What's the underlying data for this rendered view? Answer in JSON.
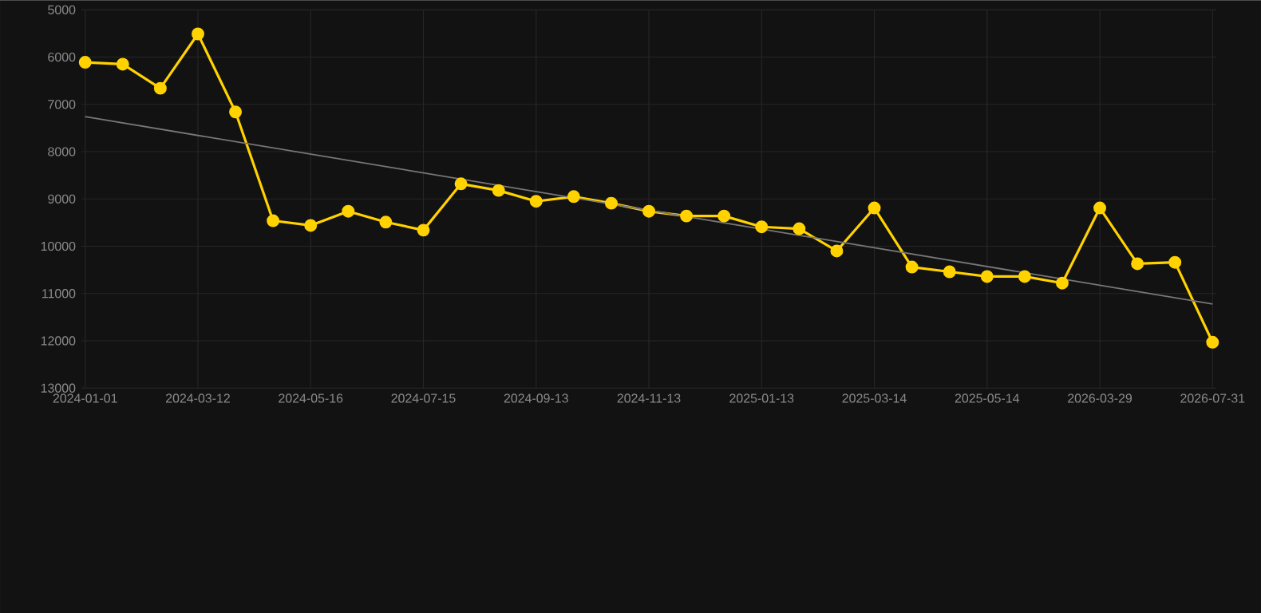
{
  "chart_data": {
    "type": "line",
    "categories": [
      "2024-01-01",
      null,
      null,
      "2024-03-12",
      null,
      null,
      "2024-05-16",
      null,
      null,
      "2024-07-15",
      null,
      null,
      "2024-09-13",
      null,
      null,
      "2024-11-13",
      null,
      null,
      "2025-01-13",
      null,
      null,
      "2025-03-14",
      null,
      null,
      "2025-05-14",
      null,
      null,
      "2026-03-29",
      null,
      null,
      "2026-07-31"
    ],
    "series": [
      {
        "color": "#ffd200",
        "marker": "circle",
        "values": [
          6110,
          6150,
          6660,
          5510,
          7160,
          9460,
          9560,
          9260,
          9490,
          9660,
          8680,
          8820,
          9050,
          8950,
          9090,
          9260,
          9360,
          9360,
          9590,
          9630,
          10100,
          9190,
          10440,
          10540,
          10640,
          10640,
          10780,
          9190,
          10370,
          10340,
          12030
        ]
      },
      {
        "type": "line",
        "color": "#777777",
        "marker": "none",
        "values": [
          7260,
          null,
          null,
          null,
          null,
          null,
          null,
          null,
          null,
          null,
          null,
          null,
          null,
          null,
          null,
          null,
          null,
          null,
          null,
          null,
          null,
          null,
          null,
          null,
          null,
          null,
          null,
          null,
          null,
          null,
          11220
        ]
      }
    ],
    "ylim": [
      13000,
      5000
    ],
    "yticks": [
      5000,
      6000,
      7000,
      8000,
      9000,
      10000,
      11000,
      12000,
      13000
    ],
    "grid": true
  }
}
